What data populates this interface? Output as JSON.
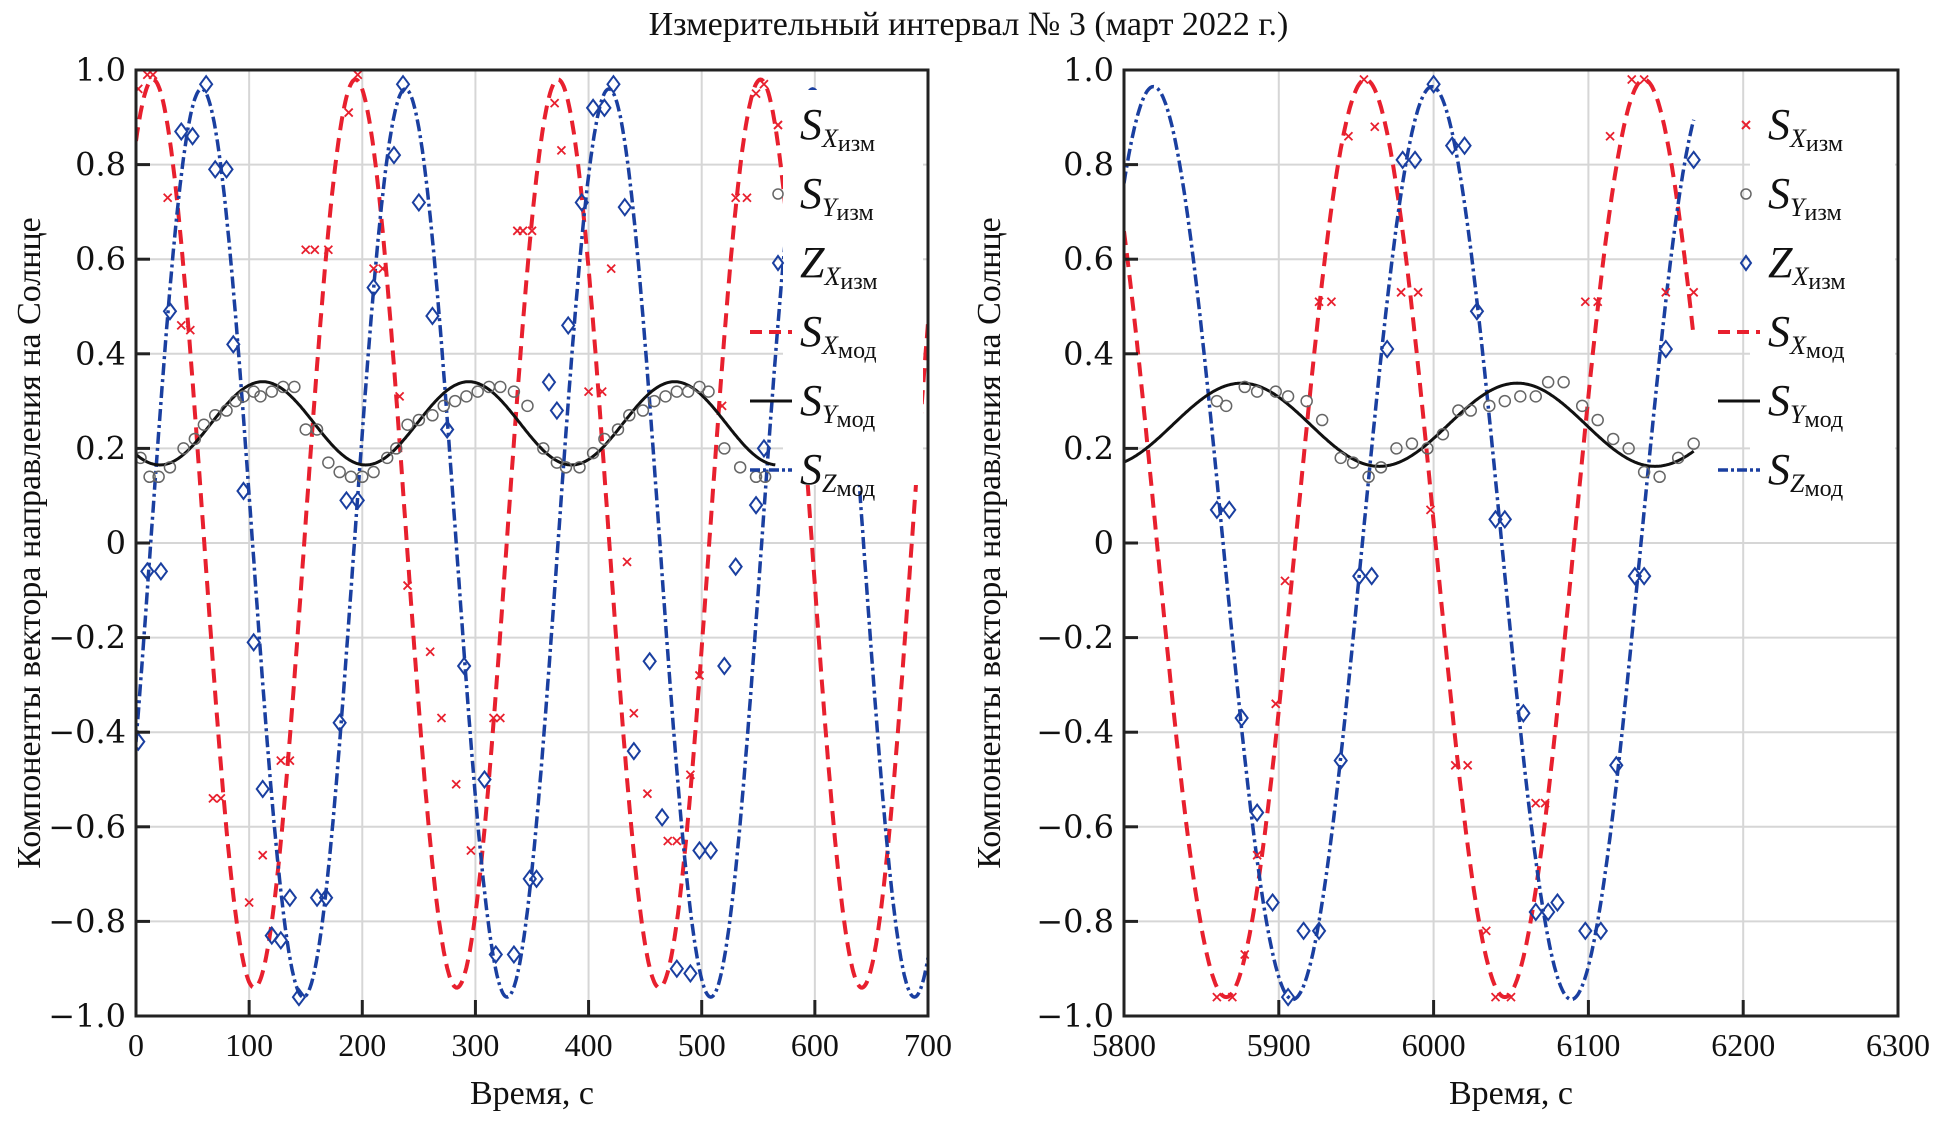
{
  "figure_title": "Измерительный интервал № 3 (март 2022 г.)",
  "colors": {
    "sx": "#e8202e",
    "sy": "#111111",
    "sz": "#1a3fa0",
    "sy_marker": "#666666",
    "grid": "#d6d6d6"
  },
  "chart_data": [
    {
      "type": "line",
      "title": "",
      "xlabel": "Время, с",
      "ylabel": "Компоненты вектора направления на Солнце",
      "xlim": [
        0,
        700
      ],
      "ylim": [
        -1.0,
        1.0
      ],
      "xticks": [
        "0",
        "100",
        "200",
        "300",
        "400",
        "500",
        "600",
        "700"
      ],
      "yticks": [
        "1.0",
        "0.8",
        "0.6",
        "0.4",
        "0.2",
        "0",
        "−0.2",
        "−0.4",
        "−0.6",
        "−0.8",
        "−1.0"
      ],
      "grid": true,
      "legend_position": "right",
      "legend": [
        {
          "key": "sx_meas",
          "main": "S",
          "sub": "X",
          "sub2": "изм",
          "style": "x-marker"
        },
        {
          "key": "sy_meas",
          "main": "S",
          "sub": "Y",
          "sub2": "изм",
          "style": "circle-marker"
        },
        {
          "key": "sz_meas",
          "main": "Z",
          "sub": "X",
          "sub2": "изм",
          "style": "diamond-marker"
        },
        {
          "key": "sx_mod",
          "main": "S",
          "sub": "X",
          "sub2": "мод",
          "style": "dashed"
        },
        {
          "key": "sy_mod",
          "main": "S",
          "sub": "Y",
          "sub2": "мод",
          "style": "solid"
        },
        {
          "key": "sz_mod",
          "main": "S",
          "sub": "Z",
          "sub2": "мод",
          "style": "dash-dot"
        }
      ],
      "models": {
        "sx_mod": {
          "amplitude": 0.96,
          "offset": 0.02,
          "period": 179,
          "peak_at": 15,
          "x_range": [
            0,
            700
          ]
        },
        "sy_mod": {
          "amplitude": 0.088,
          "offset": 0.253,
          "period": 182,
          "peak_at": 112,
          "x_range": [
            0,
            565
          ]
        },
        "sz_mod": {
          "amplitude": 0.96,
          "offset": 0.0,
          "period": 180,
          "peak_at": 58,
          "x_range": [
            0,
            700
          ]
        }
      },
      "series": [
        {
          "name": "SX изм",
          "x": [
            2,
            10,
            15,
            28,
            40,
            48,
            68,
            75,
            100,
            112,
            128,
            136,
            150,
            158,
            170,
            188,
            196,
            210,
            218,
            233,
            240,
            260,
            270,
            283,
            296,
            316,
            322,
            337,
            342,
            350,
            370,
            376,
            400,
            412,
            420,
            434,
            440,
            452,
            470,
            478,
            490,
            498,
            518,
            530,
            540,
            548,
            555
          ],
          "y": [
            0.96,
            0.99,
            0.99,
            0.73,
            0.46,
            0.45,
            -0.54,
            -0.54,
            -0.76,
            -0.66,
            -0.46,
            -0.46,
            0.62,
            0.62,
            0.62,
            0.91,
            0.99,
            0.58,
            0.58,
            0.31,
            -0.09,
            -0.23,
            -0.37,
            -0.51,
            -0.65,
            -0.37,
            -0.37,
            0.66,
            0.66,
            0.66,
            0.93,
            0.83,
            0.32,
            0.32,
            0.58,
            -0.04,
            -0.36,
            -0.53,
            -0.63,
            -0.63,
            -0.49,
            -0.28,
            0.29,
            0.73,
            0.73,
            0.95,
            0.97
          ]
        },
        {
          "name": "SY изм",
          "x": [
            4,
            12,
            20,
            30,
            42,
            52,
            60,
            70,
            80,
            88,
            95,
            104,
            110,
            120,
            130,
            140,
            150,
            160,
            170,
            180,
            190,
            200,
            210,
            222,
            230,
            240,
            250,
            262,
            272,
            282,
            292,
            302,
            312,
            322,
            334,
            346,
            360,
            372,
            380,
            392,
            404,
            414,
            426,
            436,
            448,
            458,
            468,
            478,
            488,
            498,
            506,
            520,
            534,
            548,
            556
          ],
          "y": [
            0.18,
            0.14,
            0.14,
            0.16,
            0.2,
            0.22,
            0.25,
            0.27,
            0.28,
            0.3,
            0.31,
            0.32,
            0.31,
            0.32,
            0.33,
            0.33,
            0.24,
            0.24,
            0.17,
            0.15,
            0.14,
            0.14,
            0.15,
            0.18,
            0.2,
            0.25,
            0.26,
            0.27,
            0.29,
            0.3,
            0.31,
            0.32,
            0.33,
            0.33,
            0.32,
            0.29,
            0.2,
            0.17,
            0.16,
            0.16,
            0.19,
            0.22,
            0.24,
            0.27,
            0.28,
            0.3,
            0.31,
            0.32,
            0.32,
            0.33,
            0.32,
            0.2,
            0.16,
            0.14,
            0.14
          ]
        },
        {
          "name": "ZX изм",
          "x": [
            2,
            10,
            22,
            30,
            40,
            50,
            62,
            70,
            80,
            86,
            95,
            104,
            112,
            120,
            128,
            136,
            144,
            160,
            168,
            180,
            186,
            196,
            210,
            228,
            236,
            250,
            262,
            275,
            290,
            308,
            318,
            334,
            348,
            354,
            365,
            372,
            382,
            394,
            404,
            414,
            422,
            432,
            440,
            454,
            465,
            478,
            490,
            498,
            508,
            520,
            530,
            548,
            555
          ],
          "y": [
            -0.42,
            -0.06,
            -0.06,
            0.49,
            0.87,
            0.86,
            0.97,
            0.79,
            0.79,
            0.42,
            0.11,
            -0.21,
            -0.52,
            -0.83,
            -0.84,
            -0.75,
            -0.96,
            -0.75,
            -0.75,
            -0.38,
            0.09,
            0.09,
            0.54,
            0.82,
            0.97,
            0.72,
            0.48,
            0.24,
            -0.26,
            -0.5,
            -0.87,
            -0.87,
            -0.71,
            -0.71,
            0.34,
            0.28,
            0.46,
            0.72,
            0.92,
            0.92,
            0.97,
            0.71,
            -0.44,
            -0.25,
            -0.58,
            -0.9,
            -0.91,
            -0.65,
            -0.65,
            -0.26,
            -0.05,
            0.08,
            0.2
          ]
        }
      ]
    },
    {
      "type": "line",
      "title": "",
      "xlabel": "Время, с",
      "ylabel": "Компоненты вектора направления на Солнце",
      "xlim": [
        5800,
        6300
      ],
      "ylim": [
        -1.0,
        1.0
      ],
      "xticks": [
        "5800",
        "5900",
        "6000",
        "6100",
        "6200",
        "6300"
      ],
      "yticks": [
        "1.0",
        "0.8",
        "0.6",
        "0.4",
        "0.2",
        "0",
        "−0.2",
        "−0.4",
        "−0.6",
        "−0.8",
        "−1.0"
      ],
      "grid": true,
      "legend_position": "right",
      "legend": [
        {
          "key": "sx_meas",
          "main": "S",
          "sub": "X",
          "sub2": "изм",
          "style": "x-marker"
        },
        {
          "key": "sy_meas",
          "main": "S",
          "sub": "Y",
          "sub2": "изм",
          "style": "circle-marker"
        },
        {
          "key": "sz_meas",
          "main": "Z",
          "sub": "X",
          "sub2": "изм",
          "style": "diamond-marker"
        },
        {
          "key": "sx_mod",
          "main": "S",
          "sub": "X",
          "sub2": "мод",
          "style": "dashed"
        },
        {
          "key": "sy_mod",
          "main": "S",
          "sub": "Y",
          "sub2": "мод",
          "style": "solid"
        },
        {
          "key": "sz_mod",
          "main": "S",
          "sub": "Z",
          "sub2": "мод",
          "style": "dash-dot"
        }
      ],
      "models": {
        "sx_mod": {
          "amplitude": 0.97,
          "offset": 0.01,
          "period": 180,
          "peak_at": 5956,
          "x_range": [
            5800,
            6168
          ]
        },
        "sy_mod": {
          "amplitude": 0.088,
          "offset": 0.25,
          "period": 178,
          "peak_at": 5876,
          "x_range": [
            5800,
            6168
          ]
        },
        "sz_mod": {
          "amplitude": 0.965,
          "offset": 0.0,
          "period": 180,
          "peak_at": 5819,
          "x_range": [
            5800,
            6168
          ]
        }
      },
      "series": [
        {
          "name": "SX изм",
          "x": [
            5860,
            5870,
            5878,
            5886,
            5898,
            5904,
            5926,
            5934,
            5945,
            5955,
            5962,
            5979,
            5990,
            5998,
            6014,
            6022,
            6034,
            6040,
            6050,
            6066,
            6072,
            6098,
            6106,
            6114,
            6128,
            6136,
            6150,
            6168
          ],
          "y": [
            -0.96,
            -0.96,
            -0.87,
            -0.66,
            -0.34,
            -0.08,
            0.51,
            0.51,
            0.86,
            0.98,
            0.88,
            0.53,
            0.53,
            0.07,
            -0.47,
            -0.47,
            -0.82,
            -0.96,
            -0.96,
            -0.55,
            -0.55,
            0.51,
            0.51,
            0.86,
            0.98,
            0.98,
            0.53,
            0.53
          ]
        },
        {
          "name": "SY изм",
          "x": [
            5860,
            5866,
            5878,
            5886,
            5898,
            5906,
            5918,
            5928,
            5940,
            5948,
            5958,
            5966,
            5976,
            5986,
            5996,
            6006,
            6016,
            6024,
            6036,
            6046,
            6056,
            6066,
            6074,
            6084,
            6096,
            6106,
            6116,
            6126,
            6136,
            6146,
            6158,
            6168
          ],
          "y": [
            0.3,
            0.29,
            0.33,
            0.32,
            0.32,
            0.31,
            0.3,
            0.26,
            0.18,
            0.17,
            0.14,
            0.16,
            0.2,
            0.21,
            0.2,
            0.23,
            0.28,
            0.28,
            0.29,
            0.3,
            0.31,
            0.31,
            0.34,
            0.34,
            0.29,
            0.26,
            0.22,
            0.2,
            0.15,
            0.14,
            0.18,
            0.21
          ]
        },
        {
          "name": "ZX изм",
          "x": [
            5860,
            5868,
            5876,
            5886,
            5896,
            5906,
            5916,
            5926,
            5940,
            5952,
            5960,
            5970,
            5980,
            5988,
            6000,
            6012,
            6020,
            6028,
            6040,
            6046,
            6058,
            6066,
            6074,
            6080,
            6098,
            6108,
            6118,
            6130,
            6136,
            6150,
            6168
          ],
          "y": [
            0.07,
            0.07,
            -0.37,
            -0.57,
            -0.76,
            -0.96,
            -0.82,
            -0.82,
            -0.46,
            -0.07,
            -0.07,
            0.41,
            0.81,
            0.81,
            0.97,
            0.84,
            0.84,
            0.49,
            0.05,
            0.05,
            -0.36,
            -0.78,
            -0.78,
            -0.76,
            -0.82,
            -0.82,
            -0.47,
            -0.07,
            -0.07,
            0.41,
            0.81
          ]
        }
      ]
    }
  ]
}
